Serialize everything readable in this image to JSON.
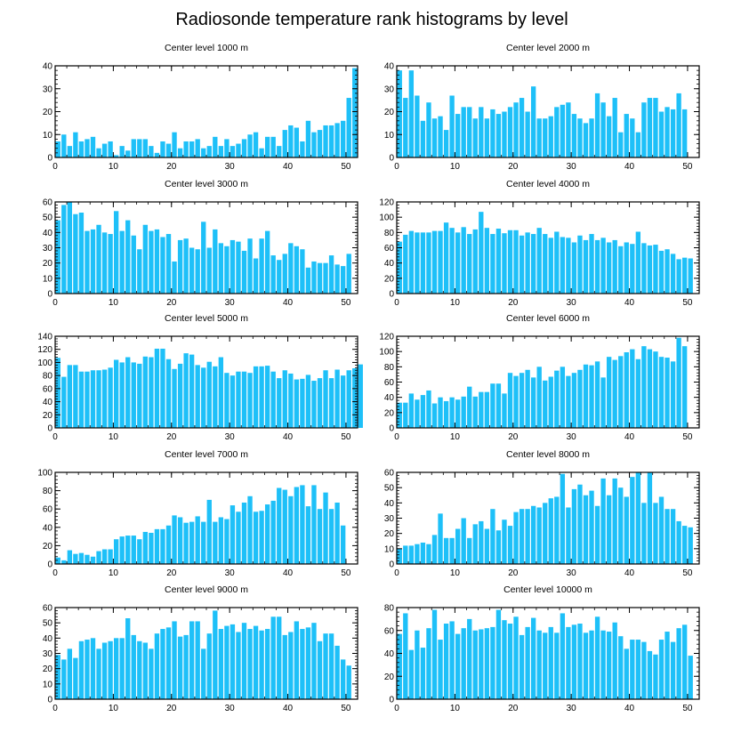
{
  "title": "Radiosonde temperature rank histograms by level",
  "colors": {
    "bar": "#1ec0f8",
    "axis": "#000000",
    "background": "#ffffff"
  },
  "chart_data": [
    {
      "type": "bar",
      "title": "Center level 1000 m",
      "xlim": [
        0,
        52
      ],
      "xticks": [
        0,
        10,
        20,
        30,
        40,
        50
      ],
      "ylim": [
        0,
        40
      ],
      "yticks": [
        0,
        10,
        20,
        30,
        40
      ],
      "values": [
        7,
        10,
        5,
        11,
        7,
        8,
        9,
        4,
        6,
        7,
        1,
        5,
        3,
        8,
        8,
        8,
        5,
        2,
        7,
        6,
        11,
        4,
        7,
        7,
        8,
        4,
        5,
        9,
        5,
        8,
        5,
        6,
        8,
        10,
        11,
        4,
        9,
        9,
        5,
        12,
        14,
        13,
        7,
        16,
        11,
        12,
        14,
        14,
        15,
        16,
        26,
        39
      ]
    },
    {
      "type": "bar",
      "title": "Center level 2000 m",
      "xlim": [
        0,
        52
      ],
      "xticks": [
        0,
        10,
        20,
        30,
        40,
        50
      ],
      "ylim": [
        0,
        40
      ],
      "yticks": [
        0,
        10,
        20,
        30,
        40
      ],
      "values": [
        38,
        26,
        38,
        27,
        16,
        24,
        17,
        18,
        12,
        27,
        19,
        22,
        22,
        17,
        22,
        17,
        21,
        19,
        20,
        22,
        24,
        26,
        20,
        31,
        17,
        17,
        18,
        22,
        23,
        24,
        19,
        17,
        15,
        17,
        28,
        24,
        18,
        26,
        11,
        19,
        17,
        11,
        24,
        26,
        26,
        20,
        22,
        21,
        28,
        21
      ]
    },
    {
      "type": "bar",
      "title": "Center level 3000 m",
      "xlim": [
        0,
        52
      ],
      "xticks": [
        0,
        10,
        20,
        30,
        40,
        50
      ],
      "ylim": [
        0,
        60
      ],
      "yticks": [
        0,
        10,
        20,
        30,
        40,
        50,
        60
      ],
      "values": [
        48,
        58,
        60,
        52,
        53,
        41,
        42,
        45,
        40,
        39,
        54,
        41,
        48,
        38,
        29,
        45,
        41,
        42,
        37,
        39,
        21,
        35,
        36,
        30,
        29,
        47,
        30,
        42,
        33,
        31,
        35,
        34,
        28,
        36,
        23,
        36,
        41,
        25,
        22,
        26,
        33,
        31,
        29,
        17,
        21,
        20,
        20,
        25,
        19,
        18,
        26
      ]
    },
    {
      "type": "bar",
      "title": "Center level 4000 m",
      "xlim": [
        0,
        52
      ],
      "xticks": [
        0,
        10,
        20,
        30,
        40,
        50
      ],
      "ylim": [
        0,
        120
      ],
      "yticks": [
        0,
        20,
        40,
        60,
        80,
        100,
        120
      ],
      "values": [
        68,
        77,
        82,
        80,
        80,
        80,
        82,
        82,
        93,
        86,
        80,
        87,
        78,
        84,
        107,
        86,
        78,
        85,
        79,
        83,
        83,
        76,
        80,
        78,
        86,
        78,
        73,
        81,
        74,
        73,
        67,
        76,
        70,
        78,
        70,
        73,
        67,
        70,
        62,
        67,
        65,
        81,
        66,
        63,
        64,
        56,
        58,
        52,
        45,
        47,
        46
      ]
    },
    {
      "type": "bar",
      "title": "Center level 5000 m",
      "xlim": [
        0,
        52
      ],
      "xticks": [
        0,
        10,
        20,
        30,
        40,
        50
      ],
      "ylim": [
        0,
        140
      ],
      "yticks": [
        0,
        20,
        40,
        60,
        80,
        100,
        120,
        140
      ],
      "values": [
        107,
        78,
        96,
        96,
        86,
        86,
        88,
        88,
        89,
        92,
        104,
        100,
        108,
        100,
        98,
        109,
        108,
        121,
        121,
        105,
        90,
        98,
        114,
        112,
        96,
        92,
        101,
        94,
        108,
        84,
        80,
        86,
        86,
        84,
        94,
        94,
        95,
        86,
        76,
        88,
        83,
        74,
        75,
        81,
        72,
        76,
        88,
        76,
        89,
        80,
        88,
        91,
        97
      ]
    },
    {
      "type": "bar",
      "title": "Center level 6000 m",
      "xlim": [
        0,
        52
      ],
      "xticks": [
        0,
        10,
        20,
        30,
        40,
        50
      ],
      "ylim": [
        0,
        120
      ],
      "yticks": [
        0,
        20,
        40,
        60,
        80,
        100,
        120
      ],
      "values": [
        33,
        33,
        45,
        37,
        43,
        49,
        32,
        40,
        35,
        40,
        37,
        41,
        54,
        41,
        47,
        47,
        58,
        58,
        45,
        72,
        68,
        72,
        76,
        66,
        80,
        62,
        67,
        75,
        80,
        68,
        72,
        76,
        83,
        82,
        87,
        66,
        93,
        89,
        94,
        99,
        103,
        90,
        107,
        103,
        100,
        93,
        92,
        87,
        118,
        107
      ]
    },
    {
      "type": "bar",
      "title": "Center level 7000 m",
      "xlim": [
        0,
        52
      ],
      "xticks": [
        0,
        10,
        20,
        30,
        40,
        50
      ],
      "ylim": [
        0,
        100
      ],
      "yticks": [
        0,
        20,
        40,
        60,
        80,
        100
      ],
      "values": [
        7,
        4,
        15,
        11,
        12,
        10,
        8,
        14,
        16,
        16,
        27,
        30,
        31,
        31,
        27,
        35,
        34,
        38,
        38,
        42,
        53,
        51,
        45,
        46,
        52,
        46,
        70,
        46,
        51,
        49,
        64,
        57,
        67,
        74,
        57,
        58,
        65,
        69,
        83,
        81,
        74,
        84,
        86,
        63,
        86,
        60,
        78,
        60,
        67,
        42
      ]
    },
    {
      "type": "bar",
      "title": "Center level 8000 m",
      "xlim": [
        0,
        52
      ],
      "xticks": [
        0,
        10,
        20,
        30,
        40,
        50
      ],
      "ylim": [
        0,
        60
      ],
      "yticks": [
        0,
        10,
        20,
        30,
        40,
        50,
        60
      ],
      "values": [
        10,
        12,
        12,
        13,
        14,
        13,
        19,
        33,
        17,
        17,
        23,
        30,
        17,
        26,
        28,
        23,
        36,
        22,
        29,
        25,
        34,
        36,
        36,
        38,
        37,
        40,
        43,
        44,
        59,
        37,
        49,
        52,
        45,
        48,
        38,
        56,
        45,
        56,
        50,
        44,
        57,
        60,
        40,
        60,
        40,
        44,
        36,
        36,
        28,
        25,
        24
      ]
    },
    {
      "type": "bar",
      "title": "Center level 9000 m",
      "xlim": [
        0,
        52
      ],
      "xticks": [
        0,
        10,
        20,
        30,
        40,
        50
      ],
      "ylim": [
        0,
        60
      ],
      "yticks": [
        0,
        10,
        20,
        30,
        40,
        50,
        60
      ],
      "values": [
        29,
        26,
        33,
        27,
        38,
        39,
        40,
        33,
        37,
        38,
        40,
        40,
        53,
        42,
        38,
        37,
        33,
        43,
        46,
        47,
        51,
        41,
        42,
        51,
        51,
        33,
        43,
        58,
        46,
        48,
        49,
        44,
        50,
        46,
        48,
        45,
        46,
        54,
        54,
        42,
        44,
        51,
        46,
        47,
        50,
        38,
        43,
        43,
        35,
        26,
        22
      ]
    },
    {
      "type": "bar",
      "title": "Center level 10000 m",
      "xlim": [
        0,
        52
      ],
      "xticks": [
        0,
        10,
        20,
        30,
        40,
        50
      ],
      "ylim": [
        0,
        80
      ],
      "yticks": [
        0,
        20,
        40,
        60,
        80
      ],
      "values": [
        57,
        75,
        43,
        60,
        45,
        62,
        78,
        52,
        66,
        68,
        57,
        62,
        70,
        60,
        61,
        62,
        63,
        78,
        69,
        66,
        72,
        56,
        63,
        71,
        60,
        58,
        63,
        58,
        75,
        63,
        65,
        66,
        58,
        60,
        72,
        60,
        59,
        67,
        55,
        44,
        52,
        52,
        50,
        42,
        39,
        52,
        59,
        50,
        62,
        65,
        38
      ]
    }
  ]
}
